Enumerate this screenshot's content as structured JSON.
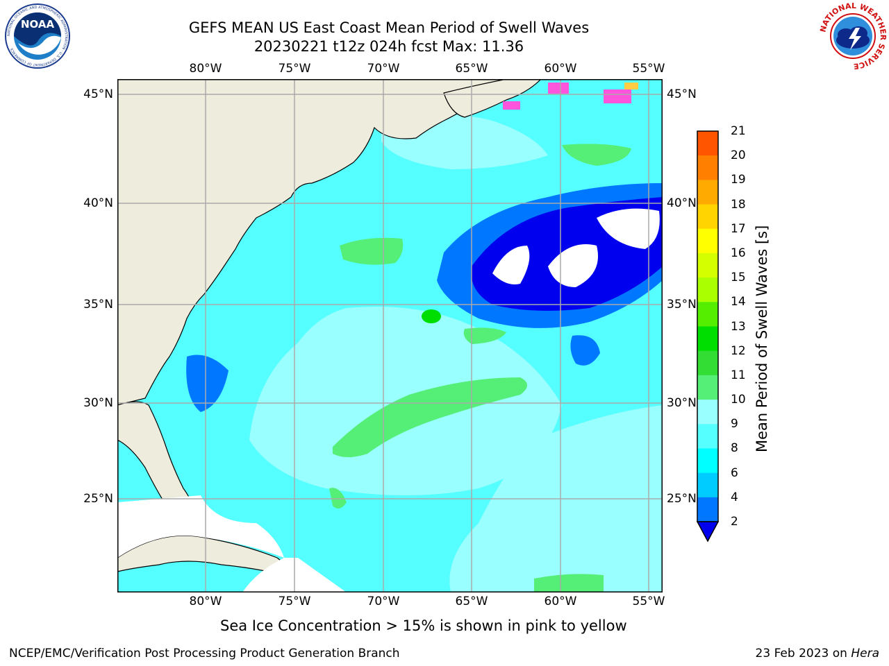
{
  "title": {
    "line1": "GEFS MEAN US East Coast Mean Period of Swell Waves",
    "line2": "20230221 t12z 024h fcst   Max: 11.36"
  },
  "logos": {
    "noaa_text": "NOAA",
    "noaa_ring": "NATIONAL OCEANIC AND ATMOSPHERIC ADMINISTRATION · U.S. DEPARTMENT OF COMMERCE",
    "nws_ring": "NATIONAL WEATHER SERVICE"
  },
  "axes": {
    "lon_labels": [
      "80°W",
      "75°W",
      "70°W",
      "65°W",
      "60°W",
      "55°W"
    ],
    "lat_labels": [
      "45°N",
      "40°N",
      "35°N",
      "30°N",
      "25°N"
    ]
  },
  "colorbar": {
    "label": "Mean Period of Swell Waves [s]",
    "ticks": [
      "21",
      "20",
      "19",
      "18",
      "17",
      "16",
      "15",
      "14",
      "13",
      "12",
      "11",
      "10",
      "9",
      "8",
      "6",
      "4",
      "2"
    ],
    "colors": [
      "#ff0000",
      "#ff2a00",
      "#ff5500",
      "#ff8000",
      "#ffaa00",
      "#ffd400",
      "#ffff00",
      "#d4ff00",
      "#aaff00",
      "#55ee00",
      "#00dd00",
      "#33dd33",
      "#55ee77",
      "#99ffff",
      "#55ffff",
      "#00ffff",
      "#00ccff",
      "#0077ff",
      "#0000ee"
    ]
  },
  "map_colors": {
    "land": "#eeecdd",
    "masked": "#ffffff",
    "p2_4": "#0000ee",
    "p4_6": "#0077ff",
    "p6_8": "#55ffff",
    "p8_9": "#99ffff",
    "p9_10": "#55ee77",
    "p10_11": "#00dd00",
    "ice": "#ff55dd",
    "grid": "#aaaaaa"
  },
  "note": "Sea Ice Concentration > 15% is shown in pink to yellow",
  "footer": {
    "left": "NCEP/EMC/Verification Post Processing Product Generation Branch",
    "right_prefix": "23 Feb 2023 on ",
    "right_machine": "Hera"
  }
}
